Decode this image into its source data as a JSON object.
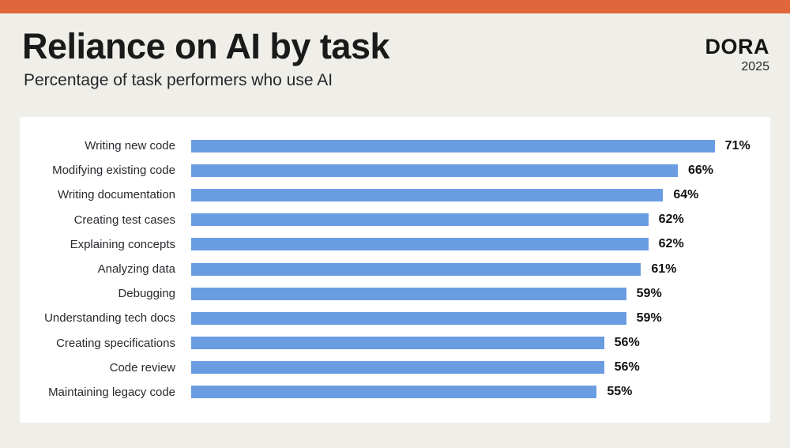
{
  "header": {
    "title": "Reliance on AI by task",
    "subtitle": "Percentage of task performers who use AI",
    "logo": {
      "name": "DORA",
      "year": "2025"
    }
  },
  "colors": {
    "accent_orange": "#E0673C",
    "background_beige": "#F0EEE9",
    "panel_white": "#FFFFFF",
    "bar_blue": "#6A9CE2",
    "title_text": "#1A1A1A",
    "value_text": "#111111"
  },
  "chart_data": {
    "type": "bar",
    "orientation": "horizontal",
    "title": "Reliance on AI by task",
    "subtitle": "Percentage of task performers who use AI",
    "categories": [
      "Writing new code",
      "Modifying existing code",
      "Writing documentation",
      "Creating test cases",
      "Explaining concepts",
      "Analyzing data",
      "Debugging",
      "Understanding tech docs",
      "Creating specifications",
      "Code review",
      "Maintaining legacy code"
    ],
    "values": [
      71,
      66,
      64,
      62,
      62,
      61,
      59,
      59,
      56,
      56,
      55
    ],
    "unit": "%",
    "value_labels": true,
    "xlim": [
      0,
      75
    ],
    "grid": false,
    "legend": false
  }
}
